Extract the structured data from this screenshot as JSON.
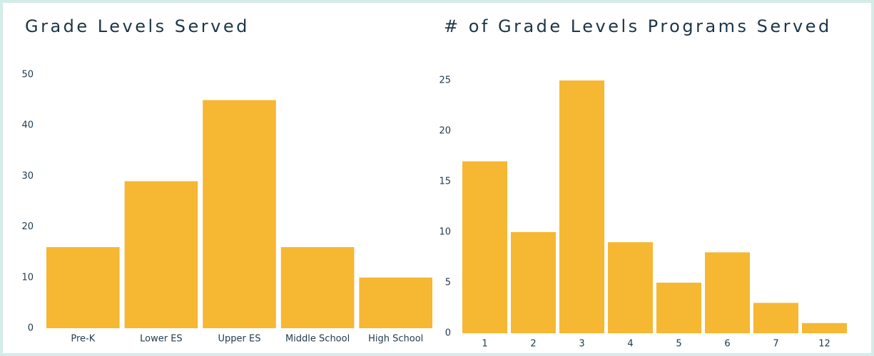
{
  "chart_data": [
    {
      "type": "bar",
      "title": "Grade Levels Served",
      "categories": [
        "Pre-K",
        "Lower ES",
        "Upper ES",
        "Middle School",
        "High School"
      ],
      "values": [
        16,
        29,
        45,
        16,
        10
      ],
      "color": "#f6b733",
      "ylim": [
        0,
        50
      ],
      "yticks": [
        0,
        10,
        20,
        30,
        40,
        50
      ],
      "grid": false
    },
    {
      "type": "bar",
      "title": "# of Grade Levels Programs Served",
      "categories": [
        "1",
        "2",
        "3",
        "4",
        "5",
        "6",
        "7",
        "12"
      ],
      "values": [
        17,
        10,
        25,
        9,
        5,
        8,
        3,
        1
      ],
      "color": "#f6b733",
      "ylim": [
        0,
        25
      ],
      "yticks": [
        0,
        5,
        10,
        15,
        20,
        25
      ],
      "grid": false
    }
  ]
}
